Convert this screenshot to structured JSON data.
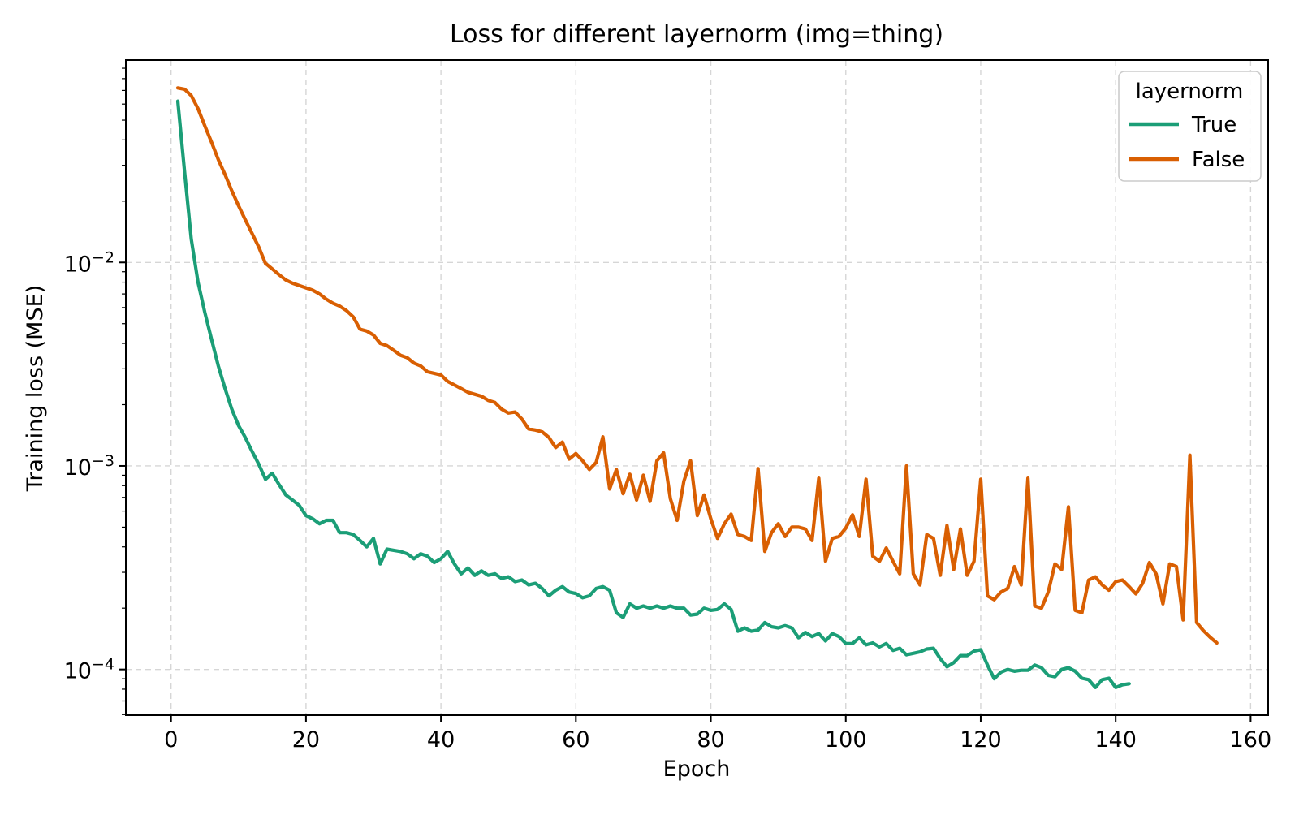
{
  "title": "Loss for different layernorm (img=thing)",
  "legend": {
    "title": "layernorm",
    "entries": [
      {
        "label": "True",
        "color": "#1b9e77"
      },
      {
        "label": "False",
        "color": "#d95f02"
      }
    ]
  },
  "chart_data": {
    "type": "line",
    "title": "Loss for different layernorm (img=thing)",
    "xlabel": "Epoch",
    "ylabel": "Training loss (MSE)",
    "yscale": "log",
    "grid": true,
    "legend_position": "upper right",
    "xlim": [
      -6.7,
      162.6
    ],
    "ylim": [
      5.96e-05,
      0.0987
    ],
    "x_ticks": [
      0,
      20,
      40,
      60,
      80,
      100,
      120,
      140,
      160
    ],
    "y_tick_exponents": [
      -2,
      -3,
      -4
    ],
    "epoch_start": 1,
    "epoch_step": 1,
    "series": [
      {
        "name": "True",
        "color": "#1b9e77",
        "values": [
          0.062,
          0.028,
          0.013,
          0.008,
          0.0057,
          0.0042,
          0.0031,
          0.0024,
          0.0019,
          0.00158,
          0.00138,
          0.00118,
          0.00102,
          0.00086,
          0.00092,
          0.00081,
          0.00072,
          0.00068,
          0.00064,
          0.00057,
          0.00055,
          0.00052,
          0.00054,
          0.00054,
          0.00047,
          0.00047,
          0.00046,
          0.00043,
          0.0004,
          0.00044,
          0.00033,
          0.00039,
          0.000385,
          0.00038,
          0.00037,
          0.00035,
          0.00037,
          0.00036,
          0.000335,
          0.00035,
          0.00038,
          0.00033,
          0.000295,
          0.000315,
          0.00029,
          0.000305,
          0.00029,
          0.000295,
          0.00028,
          0.000285,
          0.00027,
          0.000275,
          0.00026,
          0.000265,
          0.00025,
          0.00023,
          0.000245,
          0.000255,
          0.00024,
          0.000236,
          0.000225,
          0.00023,
          0.00025,
          0.000255,
          0.000245,
          0.00019,
          0.00018,
          0.00021,
          0.0002,
          0.000205,
          0.0002,
          0.000205,
          0.0002,
          0.000205,
          0.0002,
          0.0002,
          0.000185,
          0.000187,
          0.0002,
          0.000195,
          0.000197,
          0.00021,
          0.000197,
          0.000154,
          0.00016,
          0.000154,
          0.000156,
          0.00017,
          0.000162,
          0.00016,
          0.000164,
          0.00016,
          0.000143,
          0.000152,
          0.000145,
          0.00015,
          0.000138,
          0.00015,
          0.000145,
          0.000134,
          0.000134,
          0.000143,
          0.000132,
          0.000135,
          0.000129,
          0.000134,
          0.000124,
          0.000127,
          0.000118,
          0.00012,
          0.000122,
          0.000126,
          0.000127,
          0.000113,
          0.000103,
          0.000108,
          0.000117,
          0.000117,
          0.000123,
          0.000125,
          0.000105,
          9e-05,
          9.7e-05,
          0.0001,
          9.8e-05,
          9.9e-05,
          9.9e-05,
          0.000105,
          0.000102,
          9.35e-05,
          9.2e-05,
          0.0001,
          0.000102,
          9.8e-05,
          9.05e-05,
          8.9e-05,
          8.15e-05,
          8.9e-05,
          9.05e-05,
          8.15e-05,
          8.4e-05,
          8.5e-05
        ]
      },
      {
        "name": "False",
        "color": "#d95f02",
        "values": [
          0.072,
          0.071,
          0.066,
          0.057,
          0.047,
          0.039,
          0.032,
          0.027,
          0.0225,
          0.019,
          0.0162,
          0.0139,
          0.0119,
          0.0099,
          0.0093,
          0.0087,
          0.0082,
          0.0079,
          0.0077,
          0.0075,
          0.0073,
          0.007,
          0.0066,
          0.0063,
          0.0061,
          0.0058,
          0.0054,
          0.0047,
          0.0046,
          0.0044,
          0.004,
          0.0039,
          0.0037,
          0.0035,
          0.0034,
          0.0032,
          0.0031,
          0.0029,
          0.00285,
          0.0028,
          0.0026,
          0.0025,
          0.0024,
          0.0023,
          0.00225,
          0.0022,
          0.0021,
          0.00205,
          0.0019,
          0.00182,
          0.00184,
          0.0017,
          0.00152,
          0.0015,
          0.00147,
          0.00138,
          0.00123,
          0.00131,
          0.00108,
          0.00115,
          0.00106,
          0.00096,
          0.00104,
          0.00139,
          0.00077,
          0.00096,
          0.00073,
          0.00091,
          0.00068,
          0.0009,
          0.00067,
          0.00106,
          0.00116,
          0.00069,
          0.00054,
          0.00084,
          0.00106,
          0.00057,
          0.00072,
          0.00055,
          0.00044,
          0.00052,
          0.00058,
          0.00046,
          0.00045,
          0.00043,
          0.00097,
          0.00038,
          0.00047,
          0.00052,
          0.00045,
          0.0005,
          0.0005,
          0.00049,
          0.00043,
          0.00087,
          0.00034,
          0.00044,
          0.00045,
          0.000495,
          0.000575,
          0.00045,
          0.00086,
          0.00036,
          0.00034,
          0.000395,
          0.00034,
          0.000295,
          0.001,
          0.000295,
          0.00026,
          0.00046,
          0.00044,
          0.00029,
          0.00051,
          0.00031,
          0.00049,
          0.00029,
          0.00034,
          0.00086,
          0.00023,
          0.00022,
          0.00024,
          0.00025,
          0.00032,
          0.00026,
          0.00087,
          0.000205,
          0.0002,
          0.00024,
          0.00033,
          0.00031,
          0.00063,
          0.000195,
          0.00019,
          0.000275,
          0.000285,
          0.00026,
          0.000245,
          0.00027,
          0.000275,
          0.000255,
          0.000235,
          0.000265,
          0.000335,
          0.000295,
          0.00021,
          0.00033,
          0.00032,
          0.000175,
          0.00113,
          0.00017,
          0.000155,
          0.000144,
          0.000135
        ]
      }
    ]
  }
}
